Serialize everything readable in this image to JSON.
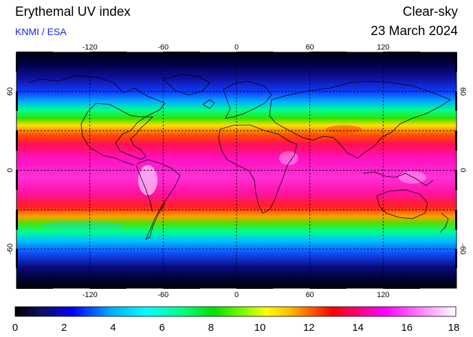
{
  "header": {
    "title": "Erythemal UV index",
    "credit": "KNMI / ESA",
    "mode": "Clear-sky",
    "date": "23 March 2024"
  },
  "map": {
    "longitude_ticks": [
      "-120",
      "-60",
      "0",
      "60",
      "120"
    ],
    "latitude_ticks": [
      "60",
      "0",
      "-60"
    ],
    "gridlines": "dashed, every 30 degrees",
    "projection": "equirectangular"
  },
  "colorbar": {
    "ticks": [
      "0",
      "2",
      "4",
      "6",
      "8",
      "10",
      "12",
      "14",
      "16",
      "18"
    ],
    "min": 0,
    "max": 18,
    "colors": [
      "#000000",
      "#101060",
      "#0000ff",
      "#00b0ff",
      "#00ffff",
      "#00ff80",
      "#00e000",
      "#80ff00",
      "#ffff00",
      "#ffc000",
      "#ff6000",
      "#ff0000",
      "#ff0080",
      "#ff00ff",
      "#ff60ff",
      "#ffc0ff",
      "#ffffff"
    ]
  }
}
